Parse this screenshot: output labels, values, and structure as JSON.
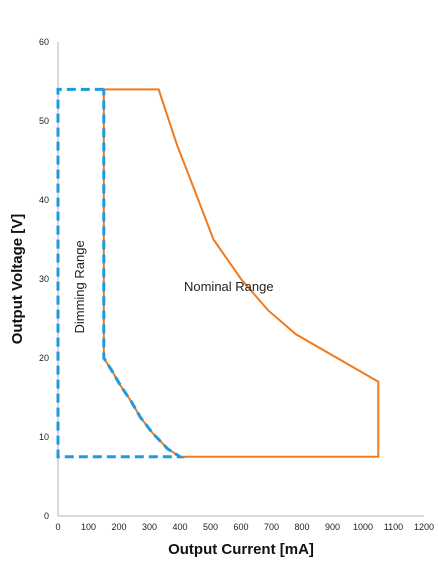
{
  "chart_data": {
    "type": "line",
    "xlabel": "Output Current [mA]",
    "ylabel": "Output Voltage [V]",
    "xlim": [
      0,
      1200
    ],
    "ylim": [
      0,
      60
    ],
    "x_ticks": [
      0,
      100,
      200,
      300,
      400,
      500,
      600,
      700,
      800,
      900,
      1000,
      1100,
      1200
    ],
    "y_ticks": [
      0,
      10,
      20,
      30,
      40,
      50,
      60
    ],
    "grid": false,
    "legend": "none",
    "series": [
      {
        "color": "#F07A1E",
        "style": "solid",
        "points": [
          [
            150,
            54
          ],
          [
            330,
            54
          ],
          [
            390,
            47
          ],
          [
            430,
            43
          ],
          [
            510,
            35
          ],
          [
            600,
            30
          ],
          [
            690,
            26
          ],
          [
            780,
            23
          ],
          [
            1050,
            17
          ],
          [
            1050,
            7.5
          ],
          [
            400,
            7.5
          ],
          [
            360,
            8.5
          ],
          [
            310,
            10.5
          ],
          [
            270,
            12.5
          ],
          [
            240,
            14.5
          ],
          [
            205,
            16.5
          ],
          [
            175,
            18.5
          ],
          [
            150,
            20
          ],
          [
            150,
            54
          ]
        ]
      },
      {
        "color": "#1E9BE0",
        "style": "dashed",
        "points": [
          [
            150,
            54
          ],
          [
            0,
            54
          ],
          [
            0,
            7.5
          ],
          [
            400,
            7.5
          ],
          [
            360,
            8.5
          ],
          [
            310,
            10.5
          ],
          [
            270,
            12.5
          ],
          [
            240,
            14.5
          ],
          [
            205,
            16.5
          ],
          [
            175,
            18.5
          ],
          [
            150,
            20
          ],
          [
            150,
            54
          ]
        ]
      }
    ],
    "annotations": [
      {
        "text": "Nominal Range",
        "x": 560,
        "y": 28.5,
        "rotation": 0
      },
      {
        "text": "Dimming Range",
        "x": 85,
        "y": 29,
        "rotation": -90
      }
    ]
  }
}
